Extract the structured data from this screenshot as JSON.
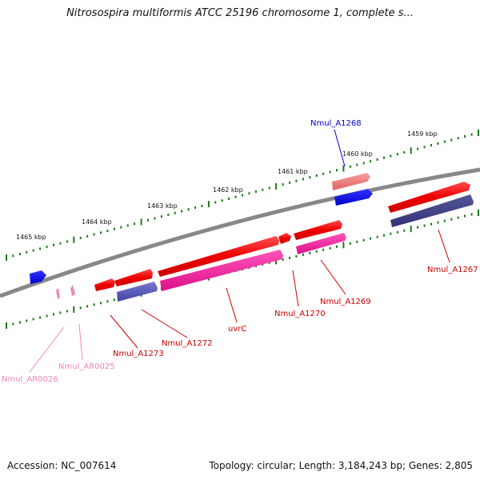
{
  "title": "Nitrosospira multiformis ATCC 25196 chromosome 1, complete s...",
  "footer": {
    "accession": "Accession: NC_007614",
    "summary": "Topology: circular; Length: 3,184,243 bp; Genes: 2,805"
  },
  "scale_labels": [
    "1465 kbp",
    "1464 kbp",
    "1463 kbp",
    "1462 kbp",
    "1461 kbp",
    "1460 kbp",
    "1459 kbp"
  ],
  "gene_labels": [
    {
      "id": "Nmul_A1268",
      "color": "#0000cc"
    },
    {
      "id": "Nmul_A1267",
      "color": "#cc0000"
    },
    {
      "id": "Nmul_A1269",
      "color": "#cc0000"
    },
    {
      "id": "Nmul_A1270",
      "color": "#cc0000"
    },
    {
      "id": "uvrC",
      "color": "#cc0000"
    },
    {
      "id": "Nmul_A1272",
      "color": "#cc0000"
    },
    {
      "id": "Nmul_A1273",
      "color": "#cc0000"
    },
    {
      "id": "Nmul_AR0025",
      "color": "#ee88bb"
    },
    {
      "id": "Nmul_AR0026",
      "color": "#ee88bb"
    }
  ],
  "colors": {
    "backbone": "#808080",
    "tick": "#1a7a1a",
    "cds_red": "#ee0000",
    "cds_blue": "#0000ee",
    "cds_pink": "#ee2299",
    "cds_purple": "#5050bb",
    "rna_pink": "#ee88bb"
  }
}
